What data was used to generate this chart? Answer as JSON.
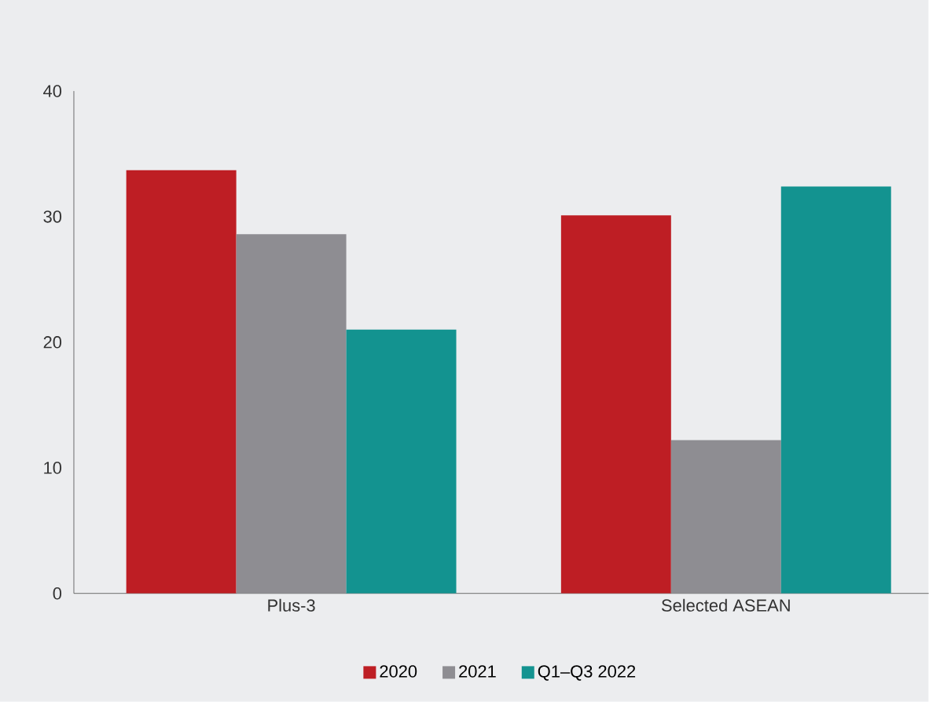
{
  "chart_data": {
    "type": "bar",
    "categories": [
      "Plus-3",
      "Selected ASEAN"
    ],
    "series": [
      {
        "name": "2020",
        "color": "#be1e24",
        "values": [
          33.7,
          30.1
        ]
      },
      {
        "name": "2021",
        "color": "#8e8d92",
        "values": [
          28.6,
          12.2
        ]
      },
      {
        "name": "Q1–Q3 2022",
        "color": "#139390",
        "values": [
          21.0,
          32.4
        ]
      }
    ],
    "ylim": [
      0,
      40
    ],
    "yticks": [
      0,
      10,
      20,
      30,
      40
    ],
    "grid": false,
    "legend": "bottom"
  }
}
